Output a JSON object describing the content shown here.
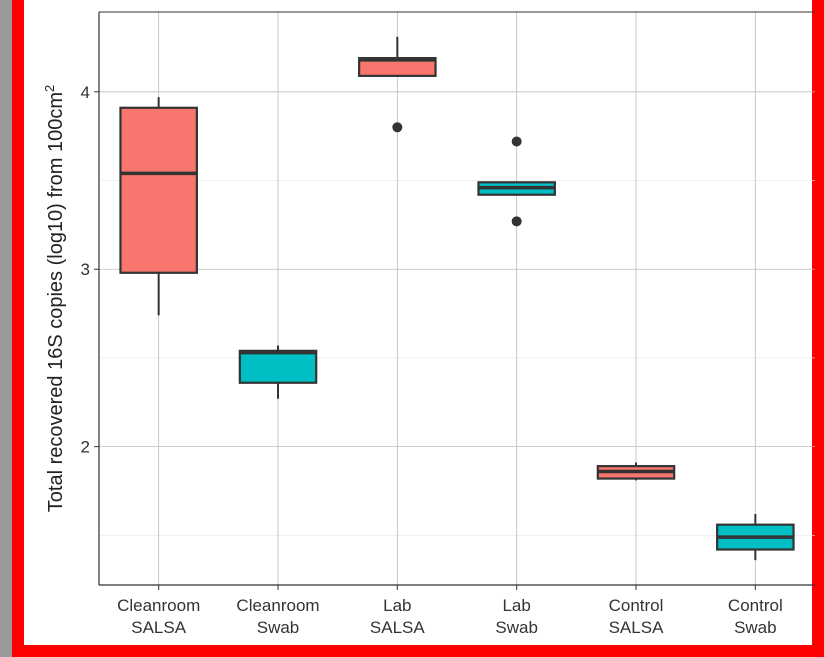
{
  "chart_data": {
    "type": "box",
    "y_label": "Total recovered 16S copies (log10) from 100cm",
    "y_label_superscript": "2",
    "categories": [
      "Cleanroom SALSA",
      "Cleanroom Swab",
      "Lab SALSA",
      "Lab Swab",
      "Control SALSA",
      "Control Swab"
    ],
    "boxes": [
      {
        "min": 2.74,
        "q1": 2.98,
        "median": 3.54,
        "q3": 3.91,
        "max": 3.97,
        "outliers": [],
        "color": "#F8766D"
      },
      {
        "min": 2.27,
        "q1": 2.36,
        "median": 2.53,
        "q3": 2.54,
        "max": 2.57,
        "outliers": [],
        "color": "#00BFC4"
      },
      {
        "min": 4.09,
        "q1": 4.09,
        "median": 4.18,
        "q3": 4.19,
        "max": 4.31,
        "outliers": [
          3.8
        ],
        "color": "#F8766D"
      },
      {
        "min": 3.42,
        "q1": 3.42,
        "median": 3.46,
        "q3": 3.49,
        "max": 3.49,
        "outliers": [
          3.72,
          3.27
        ],
        "color": "#00BFC4"
      },
      {
        "min": 1.81,
        "q1": 1.82,
        "median": 1.86,
        "q3": 1.89,
        "max": 1.91,
        "outliers": [],
        "color": "#F8766D"
      },
      {
        "min": 1.36,
        "q1": 1.42,
        "median": 1.49,
        "q3": 1.56,
        "max": 1.62,
        "outliers": [],
        "color": "#00BFC4"
      }
    ],
    "ylim": [
      1.22,
      4.45
    ],
    "yticks": [
      2,
      3,
      4
    ],
    "minor_yticks": [
      1.5,
      2.5,
      3.5
    ],
    "grid": true
  }
}
